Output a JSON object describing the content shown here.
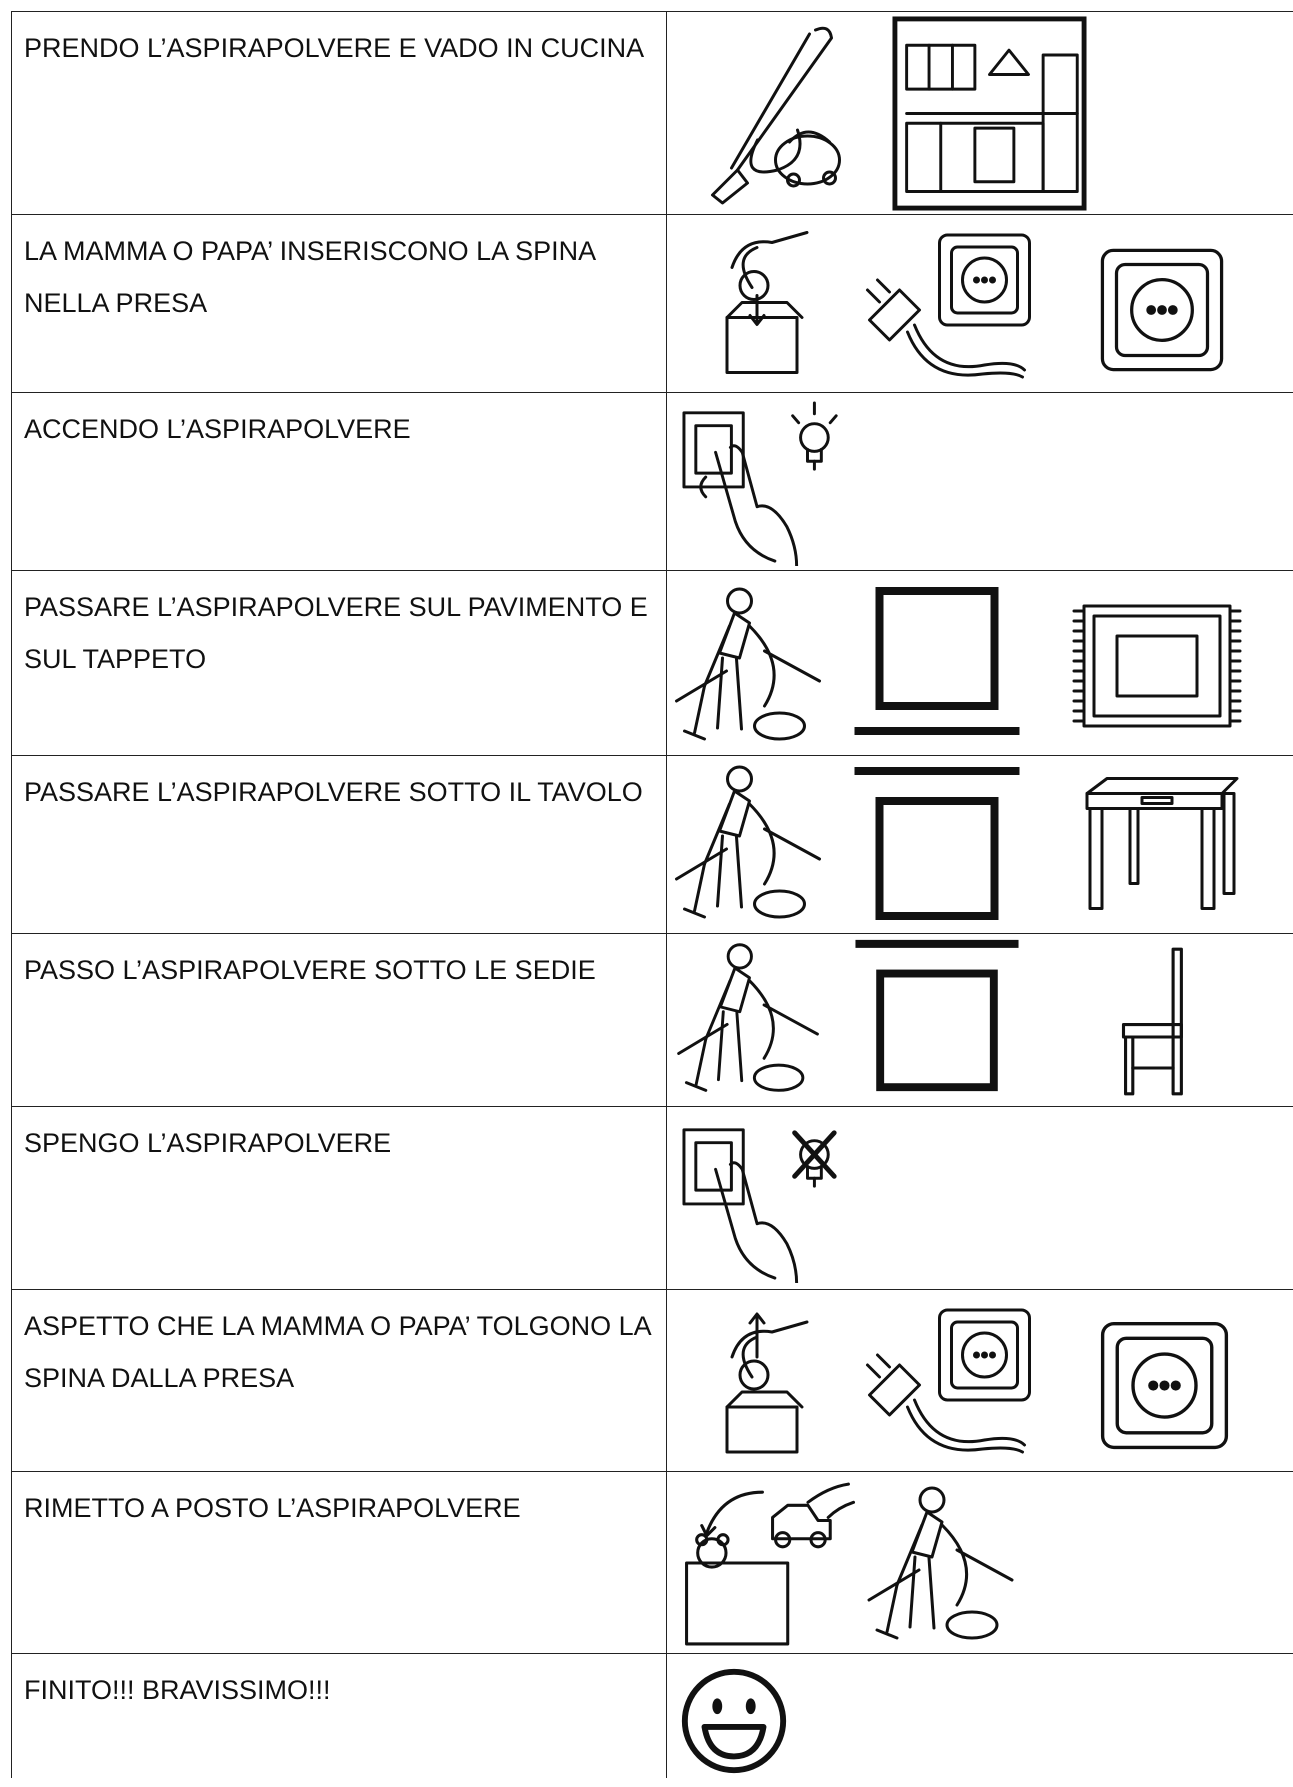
{
  "rows": [
    {
      "text": "PRENDO L’ASPIRAPOLVERE E VADO IN CUCINA"
    },
    {
      "text": "LA MAMMA O PAPA’ INSERISCONO LA SPINA NELLA PRESA"
    },
    {
      "text": "ACCENDO L’ASPIRAPOLVERE"
    },
    {
      "text": "PASSARE L’ASPIRAPOLVERE SUL PAVIMENTO E SUL TAPPETO"
    },
    {
      "text": "PASSARE L’ASPIRAPOLVERE SOTTO IL TAVOLO"
    },
    {
      "text": "PASSO L’ASPIRAPOLVERE SOTTO LE SEDIE"
    },
    {
      "text": "SPENGO L’ASPIRAPOLVERE"
    },
    {
      "text": "ASPETTO CHE LA MAMMA O PAPA’ TOLGONO LA SPINA DALLA PRESA"
    },
    {
      "text": "RIMETTO A POSTO L’ASPIRAPOLVERE"
    },
    {
      "text": "FINITO!!! BRAVISSIMO!!!"
    }
  ]
}
